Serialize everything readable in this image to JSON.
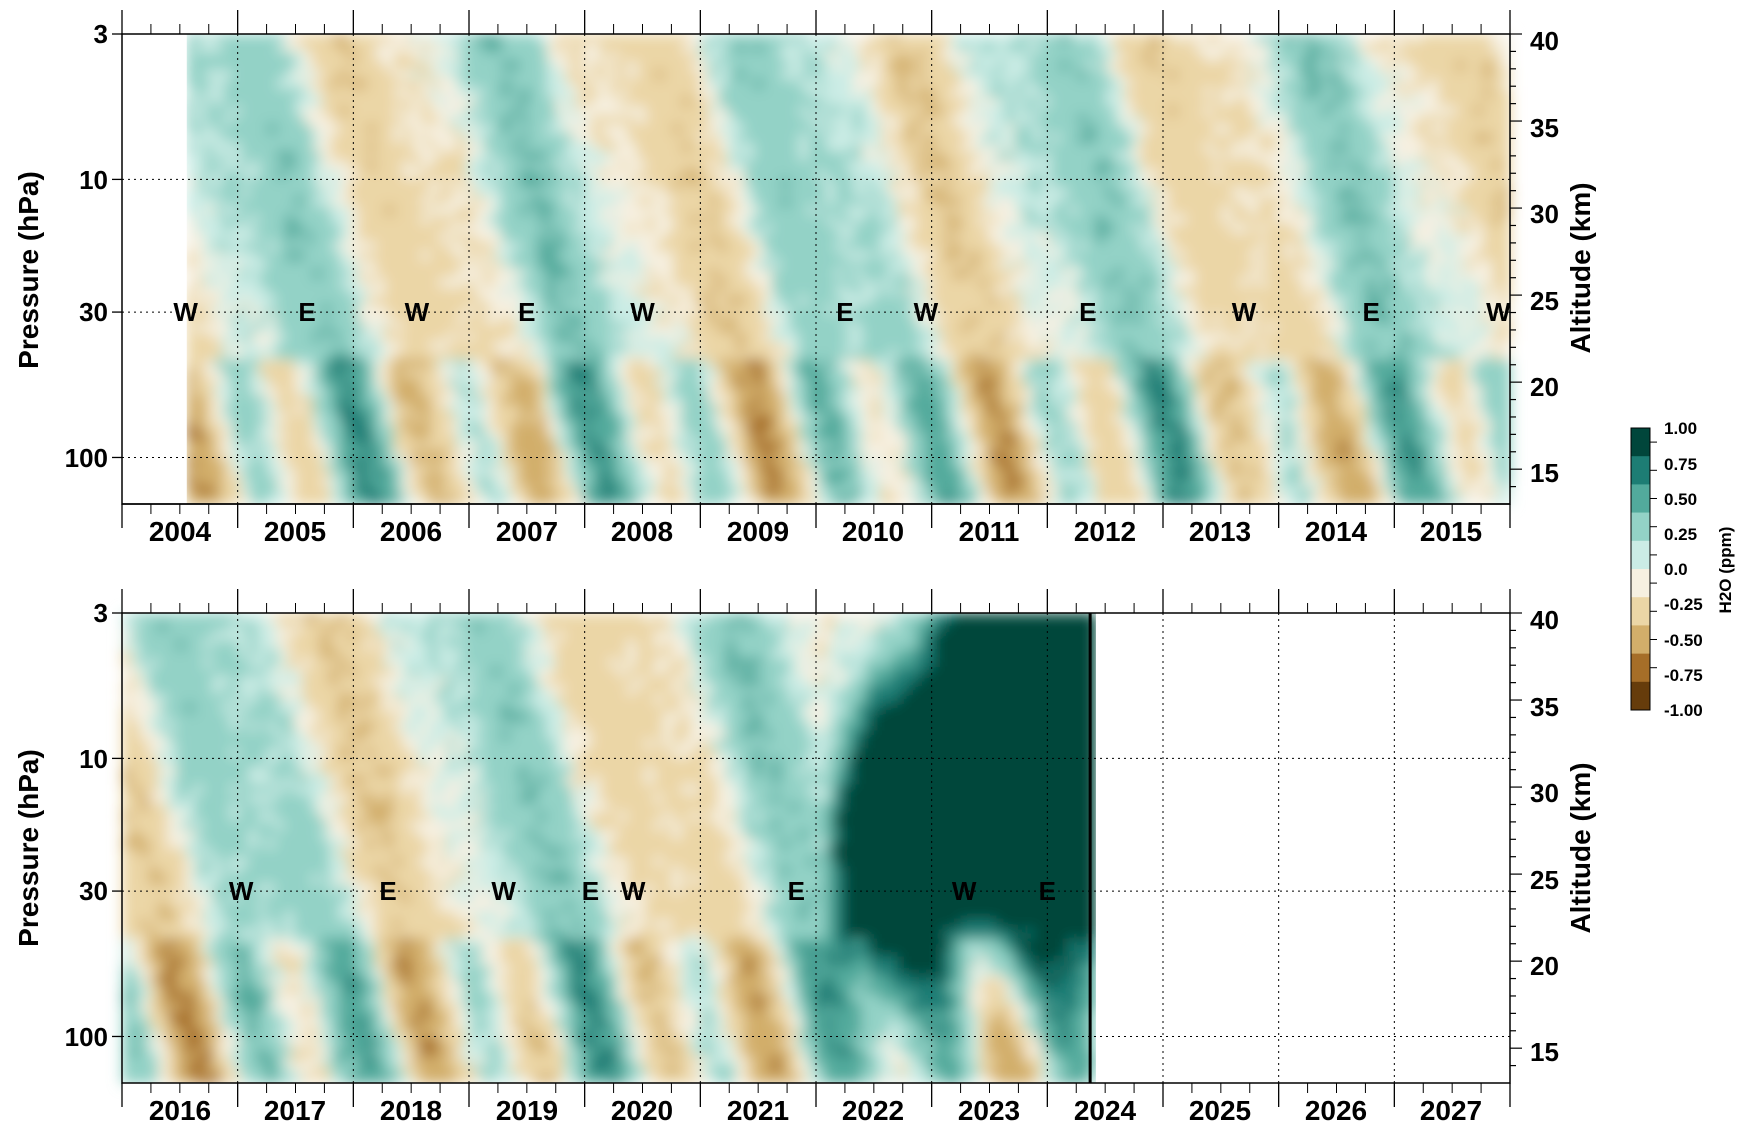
{
  "chart_data": [
    {
      "type": "heatmap",
      "title": "",
      "ylabel": "Pressure (hPa)",
      "y2label": "Altitude (km)",
      "x_year_labels": [
        "2004",
        "2005",
        "2006",
        "2007",
        "2008",
        "2009",
        "2010",
        "2011",
        "2012",
        "2013",
        "2014",
        "2015"
      ],
      "xlim": [
        2004.0,
        2016.0
      ],
      "pressure_ticks": [
        "3",
        "10",
        "30",
        "100"
      ],
      "pressure_tick_values": [
        3,
        10,
        30,
        100
      ],
      "pressure_range": [
        3,
        147
      ],
      "altitude_ticks": [
        "40",
        "35",
        "30",
        "25",
        "20",
        "15"
      ],
      "altitude_tick_values": [
        40,
        35,
        30,
        25,
        20,
        15
      ],
      "data_start": 2004.56,
      "data_end": 2016.0,
      "qbo_phase_markers": [
        {
          "label": "W",
          "x": 2004.55
        },
        {
          "label": "E",
          "x": 2005.6
        },
        {
          "label": "W",
          "x": 2006.55
        },
        {
          "label": "E",
          "x": 2007.5
        },
        {
          "label": "W",
          "x": 2008.5
        },
        {
          "label": "E",
          "x": 2010.25
        },
        {
          "label": "W",
          "x": 2010.95
        },
        {
          "label": "E",
          "x": 2012.35
        },
        {
          "label": "W",
          "x": 2013.7
        },
        {
          "label": "E",
          "x": 2014.8
        },
        {
          "label": "W",
          "x": 2015.9
        }
      ]
    },
    {
      "type": "heatmap",
      "title": "",
      "ylabel": "Pressure (hPa)",
      "y2label": "Altitude (km)",
      "x_year_labels": [
        "2016",
        "2017",
        "2018",
        "2019",
        "2020",
        "2021",
        "2022",
        "2023",
        "2024",
        "2025",
        "2026",
        "2027"
      ],
      "xlim": [
        2016.0,
        2028.0
      ],
      "pressure_ticks": [
        "3",
        "10",
        "30",
        "100"
      ],
      "pressure_tick_values": [
        3,
        10,
        30,
        100
      ],
      "pressure_range": [
        3,
        147
      ],
      "altitude_ticks": [
        "40",
        "35",
        "30",
        "25",
        "20",
        "15"
      ],
      "altitude_tick_values": [
        40,
        35,
        30,
        25,
        20,
        15
      ],
      "data_start": 2016.0,
      "data_end": 2024.42,
      "qbo_phase_markers": [
        {
          "label": "W",
          "x": 2017.03
        },
        {
          "label": "E",
          "x": 2018.3
        },
        {
          "label": "W",
          "x": 2019.3
        },
        {
          "label": "E",
          "x": 2020.05
        },
        {
          "label": "W",
          "x": 2020.42
        },
        {
          "label": "E",
          "x": 2021.83
        },
        {
          "label": "W",
          "x": 2023.28
        },
        {
          "label": "E",
          "x": 2024.0
        }
      ],
      "anomaly_event": {
        "start": 2022.05,
        "peak_x": 2023.5
      }
    }
  ],
  "colorbar": {
    "title": "H2O (ppm)",
    "ticks": [
      "1.00",
      "0.75",
      "0.50",
      "0.25",
      "0.0",
      "-0.25",
      "-0.50",
      "-0.75",
      "-1.00"
    ],
    "values": [
      1.0,
      0.75,
      0.5,
      0.25,
      0.0,
      -0.25,
      -0.5,
      -0.75,
      -1.0
    ],
    "colors": [
      "#01463b",
      "#1d7d74",
      "#52aa9c",
      "#93d2c6",
      "#cbece5",
      "#f6f0e1",
      "#ebd6a6",
      "#d2ae6a",
      "#a66e28",
      "#663c0b"
    ]
  }
}
